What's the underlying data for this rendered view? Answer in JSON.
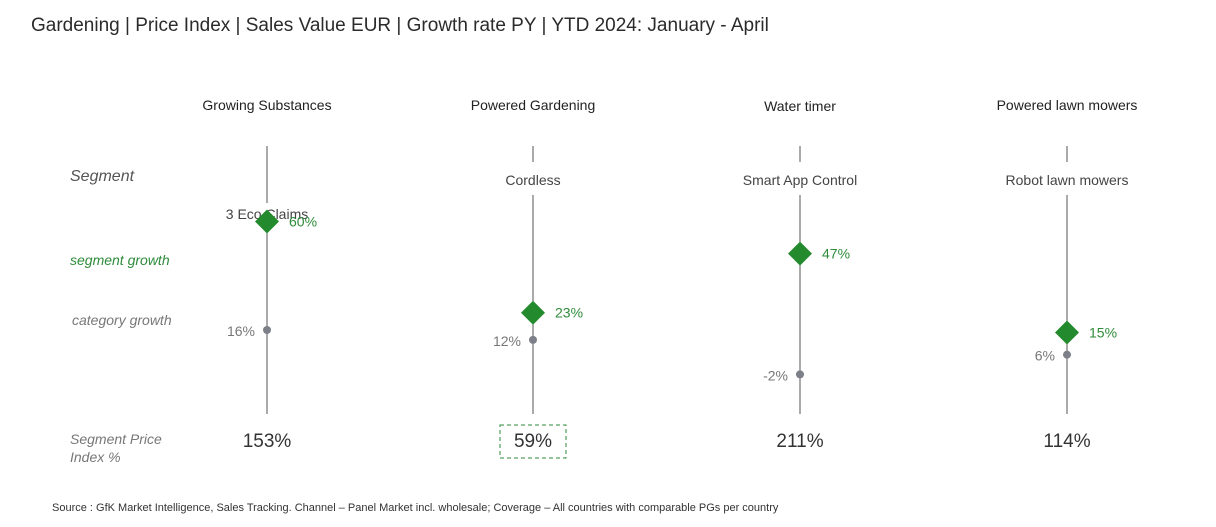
{
  "title": "Gardening | Price Index | Sales Value EUR | Growth rate PY | YTD 2024: January - April",
  "legend": {
    "segment": "Segment",
    "segment_growth": "segment growth",
    "category_growth": "category growth",
    "spi_line1": "Segment Price",
    "spi_line2": "Index %"
  },
  "source": "Source : GfK Market Intelligence, Sales Tracking. Channel – Panel Market incl. wholesale; Coverage – All countries with comparable PGs per country",
  "colors": {
    "segment": "#248a2e",
    "category": "#7d8088",
    "line": "#555555"
  },
  "chart_data": {
    "type": "scatter",
    "title": "Gardening | Price Index | Sales Value EUR | Growth rate PY | YTD 2024: January - April",
    "categories": [
      "Growing Substances",
      "Powered Gardening",
      "Water timer",
      "Powered lawn mowers"
    ],
    "segments": [
      "3 Eco Claims",
      "Cordless",
      "Smart App Control",
      "Robot lawn mowers"
    ],
    "series": [
      {
        "name": "segment growth",
        "values": [
          60,
          23,
          47,
          15
        ],
        "labels": [
          "60%",
          "23%",
          "47%",
          "15%"
        ]
      },
      {
        "name": "category growth",
        "values": [
          16,
          12,
          -2,
          6
        ],
        "labels": [
          "16%",
          "12%",
          "-2%",
          "6%"
        ]
      }
    ],
    "price_index": [
      153,
      59,
      211,
      114
    ],
    "price_index_labels": [
      "153%",
      "59%",
      "211%",
      "114%"
    ],
    "highlighted_price_index": [
      false,
      true,
      false,
      false
    ]
  }
}
